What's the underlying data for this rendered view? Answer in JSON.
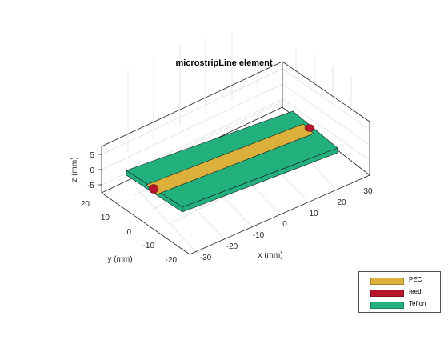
{
  "figure": {
    "title": "microstripLine element"
  },
  "axes": {
    "xlabel": "x (mm)",
    "ylabel": "y (mm)",
    "zlabel": "z (mm)",
    "xticks": [
      "-30",
      "-20",
      "-10",
      "0",
      "10",
      "20",
      "30"
    ],
    "yticks": [
      "-20",
      "-10",
      "0",
      "10",
      "20"
    ],
    "zticks": [
      "5",
      "0",
      "-5"
    ],
    "grid": true
  },
  "legend": {
    "placement": "bottom-right",
    "items": [
      {
        "label": "PEC",
        "color": "#dbb13b"
      },
      {
        "label": "feed",
        "color": "#b5162b"
      },
      {
        "label": "Teflon",
        "color": "#22b07d"
      }
    ]
  },
  "colors": {
    "pec": "#dbb13b",
    "feed": "#b5162b",
    "substrate": "#22b07d",
    "axis": "#262626",
    "grid": "#dcdcdc"
  }
}
